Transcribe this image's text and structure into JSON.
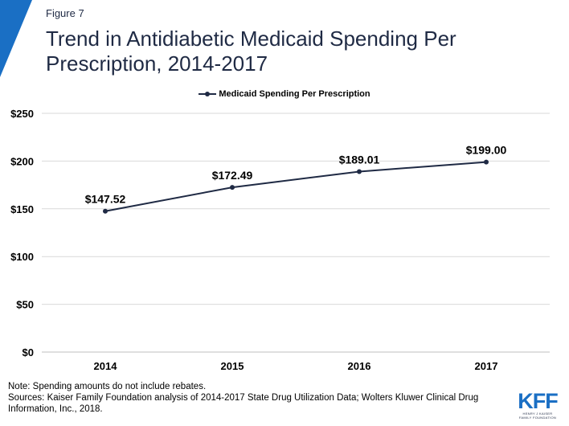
{
  "figure_label": "Figure 7",
  "title": "Trend in Antidiabetic Medicaid Spending Per Prescription, 2014-2017",
  "note": "Note: Spending amounts do not include rebates.",
  "sources": "Sources: Kaiser Family Foundation analysis of 2014-2017 State Drug Utilization Data; Wolters Kluwer Clinical Drug Information, Inc., 2018.",
  "logo": {
    "mark": "KFF",
    "subtitle_line1": "HENRY J KAISER",
    "subtitle_line2": "FAMILY FOUNDATION"
  },
  "colors": {
    "accent": "#1a6fc4",
    "line": "#1f2a44",
    "grid": "#d9d9d9"
  },
  "chart_data": {
    "type": "line",
    "title": "Trend in Antidiabetic Medicaid Spending Per Prescription, 2014-2017",
    "xlabel": "",
    "ylabel": "",
    "categories": [
      "2014",
      "2015",
      "2016",
      "2017"
    ],
    "series": [
      {
        "name": "Medicaid Spending Per Prescription",
        "values": [
          147.52,
          172.49,
          189.01,
          199.0
        ],
        "labels": [
          "$147.52",
          "$172.49",
          "$189.01",
          "$199.00"
        ]
      }
    ],
    "ylim": [
      0,
      250
    ],
    "yticks": [
      0,
      50,
      100,
      150,
      200,
      250
    ],
    "ytick_labels": [
      "$0",
      "$50",
      "$100",
      "$150",
      "$200",
      "$250"
    ],
    "grid": true,
    "legend_position": "top-center"
  }
}
